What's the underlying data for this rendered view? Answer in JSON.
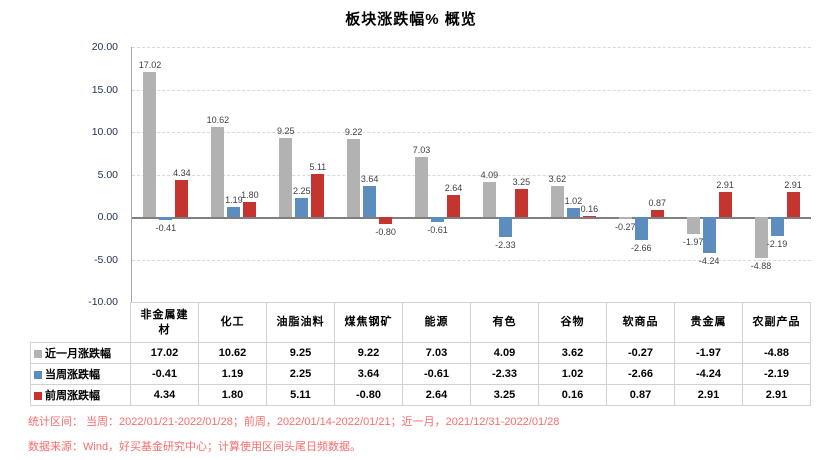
{
  "title": "板块涨跌幅% 概览",
  "chart_data": {
    "type": "bar",
    "title": "板块涨跌幅% 概览",
    "categories": [
      "非金属建材",
      "化工",
      "油脂油料",
      "煤焦钢矿",
      "能源",
      "有色",
      "谷物",
      "软商品",
      "贵金属",
      "农副产品"
    ],
    "series": [
      {
        "name": "近一月涨跌幅",
        "color": "#B2B2B2",
        "values": [
          17.02,
          10.62,
          9.25,
          9.22,
          7.03,
          4.09,
          3.62,
          -0.27,
          -1.97,
          -4.88
        ]
      },
      {
        "name": "当周涨跌幅",
        "color": "#5B8DBE",
        "values": [
          -0.41,
          1.19,
          2.25,
          3.64,
          -0.61,
          -2.33,
          1.02,
          -2.66,
          -4.24,
          -2.19
        ]
      },
      {
        "name": "前周涨跌幅",
        "color": "#C5352F",
        "values": [
          4.34,
          1.8,
          5.11,
          -0.8,
          2.64,
          3.25,
          0.16,
          0.87,
          2.91,
          2.91
        ]
      }
    ],
    "xlabel": "",
    "ylabel": "",
    "ylim": [
      -10,
      20
    ],
    "yticks": [
      20,
      15,
      10,
      5,
      0,
      -5,
      -10
    ],
    "ytick_labels": [
      "20.00",
      "15.00",
      "10.00",
      "5.00",
      "0.00",
      "-5.00",
      "-10.00"
    ],
    "grid": "horizontal-dashed",
    "legend_position": "table-row-headers",
    "data_labels": true
  },
  "table": {
    "columns": [
      "非金属建材",
      "化工",
      "油脂油料",
      "煤焦钢矿",
      "能源",
      "有色",
      "谷物",
      "软商品",
      "贵金属",
      "农副产品"
    ],
    "rows": [
      {
        "label": "近一月涨跌幅",
        "swatch_color": "#B2B2B2",
        "values": [
          "17.02",
          "10.62",
          "9.25",
          "9.22",
          "7.03",
          "4.09",
          "3.62",
          "-0.27",
          "-1.97",
          "-4.88"
        ]
      },
      {
        "label": "当周涨跌幅",
        "swatch_color": "#5B8DBE",
        "values": [
          "-0.41",
          "1.19",
          "2.25",
          "3.64",
          "-0.61",
          "-2.33",
          "1.02",
          "-2.66",
          "-4.24",
          "-2.19"
        ]
      },
      {
        "label": "前周涨跌幅",
        "swatch_color": "#C5352F",
        "values": [
          "4.34",
          "1.80",
          "5.11",
          "-0.80",
          "2.64",
          "3.25",
          "0.16",
          "0.87",
          "2.91",
          "2.91"
        ]
      }
    ]
  },
  "footer": {
    "line1": "统计区间：  当周：2022/01/21-2022/01/28；前周，2022/01/14-2022/01/21；近一月，2021/12/31-2022/01/28",
    "line2": "数据来源：Wind，好买基金研究中心；计算使用区间头尾日频数据。"
  },
  "colors": {
    "series_gray": "#B2B2B2",
    "series_blue": "#5B8DBE",
    "series_red": "#C5352F",
    "axis_label": "#223350",
    "data_label": "#3F3F46",
    "gridline": "#D9D9D9",
    "zero_line": "#7F7F7F",
    "table_border": "#D2D2D2",
    "footer_text": "#F96D6D",
    "title_text": "#000000"
  }
}
